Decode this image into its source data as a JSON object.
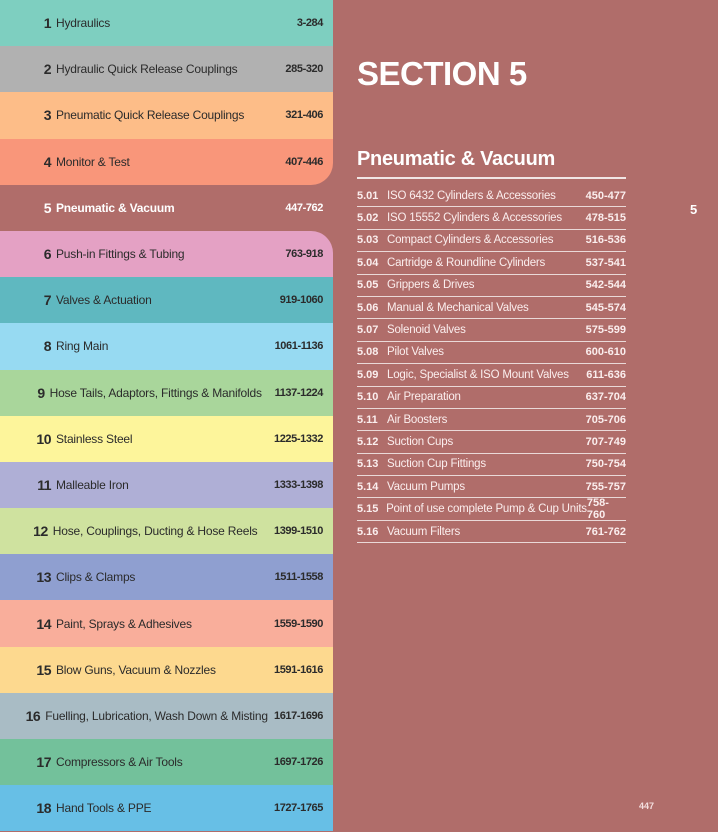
{
  "sections": [
    {
      "num": "1",
      "label": "Hydraulics",
      "pages": "3-284",
      "color": "#7ecfc0"
    },
    {
      "num": "2",
      "label": "Hydraulic Quick Release Couplings",
      "pages": "285-320",
      "color": "#b1b1b1"
    },
    {
      "num": "3",
      "label": "Pneumatic Quick Release Couplings",
      "pages": "321-406",
      "color": "#fdbd88"
    },
    {
      "num": "4",
      "label": "Monitor & Test",
      "pages": "407-446",
      "color": "#f9967a"
    },
    {
      "num": "5",
      "label": "Pneumatic & Vacuum",
      "pages": "447-762",
      "color": "#b06d6a",
      "active": true
    },
    {
      "num": "6",
      "label": "Push-in Fittings & Tubing",
      "pages": "763-918",
      "color": "#e4a1c4"
    },
    {
      "num": "7",
      "label": "Valves & Actuation",
      "pages": "919-1060",
      "color": "#5fb8c0"
    },
    {
      "num": "8",
      "label": "Ring Main",
      "pages": "1061-1136",
      "color": "#97daf2"
    },
    {
      "num": "9",
      "label": "Hose Tails, Adaptors, Fittings & Manifolds",
      "pages": "1137-1224",
      "color": "#a9d69b"
    },
    {
      "num": "10",
      "label": "Stainless Steel",
      "pages": "1225-1332",
      "color": "#fdf59b"
    },
    {
      "num": "11",
      "label": "Malleable Iron",
      "pages": "1333-1398",
      "color": "#afafd6"
    },
    {
      "num": "12",
      "label": "Hose, Couplings, Ducting & Hose Reels",
      "pages": "1399-1510",
      "color": "#cfe29f"
    },
    {
      "num": "13",
      "label": "Clips & Clamps",
      "pages": "1511-1558",
      "color": "#8f9fd0"
    },
    {
      "num": "14",
      "label": "Paint, Sprays & Adhesives",
      "pages": "1559-1590",
      "color": "#f9ae9b"
    },
    {
      "num": "15",
      "label": "Blow Guns, Vacuum & Nozzles",
      "pages": "1591-1616",
      "color": "#fdd98f"
    },
    {
      "num": "16",
      "label": "Fuelling, Lubrication, Wash Down & Misting",
      "pages": "1617-1696",
      "color": "#a9bcc5"
    },
    {
      "num": "17",
      "label": "Compressors & Air Tools",
      "pages": "1697-1726",
      "color": "#73c19b"
    },
    {
      "num": "18",
      "label": "Hand Tools & PPE",
      "pages": "1727-1765",
      "color": "#67bfe6"
    }
  ],
  "section_heading": "SECTION 5",
  "sub_heading": "Pneumatic & Vacuum",
  "subsections": [
    {
      "code": "5.01",
      "label": "ISO 6432 Cylinders & Accessories",
      "pages": "450-477"
    },
    {
      "code": "5.02",
      "label": "ISO 15552 Cylinders & Accessories",
      "pages": "478-515"
    },
    {
      "code": "5.03",
      "label": "Compact Cylinders & Accessories",
      "pages": "516-536"
    },
    {
      "code": "5.04",
      "label": "Cartridge & Roundline Cylinders",
      "pages": "537-541"
    },
    {
      "code": "5.05",
      "label": "Grippers & Drives",
      "pages": "542-544"
    },
    {
      "code": "5.06",
      "label": "Manual & Mechanical Valves",
      "pages": "545-574"
    },
    {
      "code": "5.07",
      "label": "Solenoid Valves",
      "pages": "575-599"
    },
    {
      "code": "5.08",
      "label": "Pilot Valves",
      "pages": "600-610"
    },
    {
      "code": "5.09",
      "label": "Logic, Specialist & ISO Mount Valves",
      "pages": "611-636"
    },
    {
      "code": "5.10",
      "label": "Air Preparation",
      "pages": "637-704"
    },
    {
      "code": "5.11",
      "label": "Air Boosters",
      "pages": "705-706"
    },
    {
      "code": "5.12",
      "label": "Suction Cups",
      "pages": "707-749"
    },
    {
      "code": "5.13",
      "label": "Suction Cup Fittings",
      "pages": "750-754"
    },
    {
      "code": "5.14",
      "label": "Vacuum Pumps",
      "pages": "755-757"
    },
    {
      "code": "5.15",
      "label": "Point of use complete Pump & Cup Units",
      "pages": "758-760"
    },
    {
      "code": "5.16",
      "label": "Vacuum Filters",
      "pages": "761-762"
    }
  ],
  "tab_number": "5",
  "page_number": "447"
}
